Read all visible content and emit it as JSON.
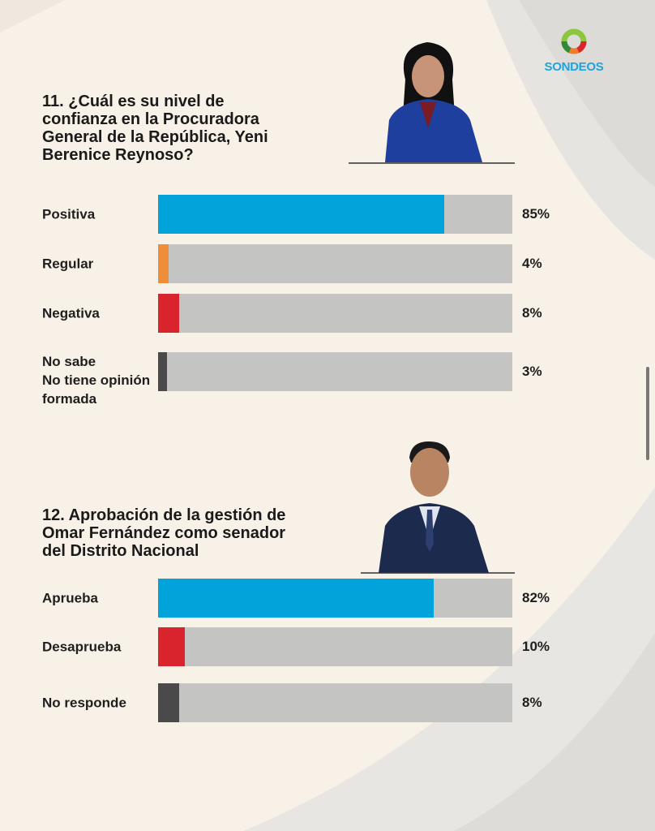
{
  "brand": {
    "name": "SONDEOS",
    "colors": {
      "blue": "#1fa3dc",
      "green": "#8cc63f",
      "orange": "#f07c2b",
      "red": "#d9262e"
    }
  },
  "chart_data": [
    {
      "type": "bar",
      "orientation": "horizontal",
      "title": "11. ¿Cuál es su nivel de confianza en la Procuradora General de la República, Yeni Berenice Reynoso?",
      "categories": [
        "Positiva",
        "Regular",
        "Negativa",
        "No sabe No tiene opinión formada"
      ],
      "category_lines": [
        [
          "Positiva"
        ],
        [
          "Regular"
        ],
        [
          "Negativa"
        ],
        [
          "No sabe",
          "No tiene opinión",
          "formada"
        ]
      ],
      "values": [
        85,
        4,
        8,
        3
      ],
      "labels": [
        "85%",
        "4%",
        "8%",
        "3%"
      ],
      "colors": [
        "#00a3da",
        "#ef8e3a",
        "#d9242d",
        "#4a4a4a"
      ],
      "xlim": [
        0,
        100
      ],
      "unit": "%"
    },
    {
      "type": "bar",
      "orientation": "horizontal",
      "title": "12. Aprobación de la gestión de Omar Fernández como senador del Distrito Nacional",
      "categories": [
        "Aprueba",
        "Desaprueba",
        "No responde"
      ],
      "category_lines": [
        [
          "Aprueba"
        ],
        [
          "Desaprueba"
        ],
        [
          "No responde"
        ]
      ],
      "values": [
        82,
        10,
        8
      ],
      "labels": [
        "82%",
        "10%",
        "8%"
      ],
      "colors": [
        "#00a3da",
        "#d9242d",
        "#4a4a4a"
      ],
      "xlim": [
        0,
        100
      ],
      "unit": "%"
    }
  ],
  "q11": {
    "title_lines": [
      "11. ¿Cuál es su nivel de",
      "confianza en la Procuradora",
      "General de la República, Yeni",
      "Berenice Reynoso?"
    ]
  },
  "q12": {
    "title_lines": [
      "12. Aprobación de la gestión de",
      "Omar Fernández como senador",
      "del Distrito Nacional"
    ]
  }
}
